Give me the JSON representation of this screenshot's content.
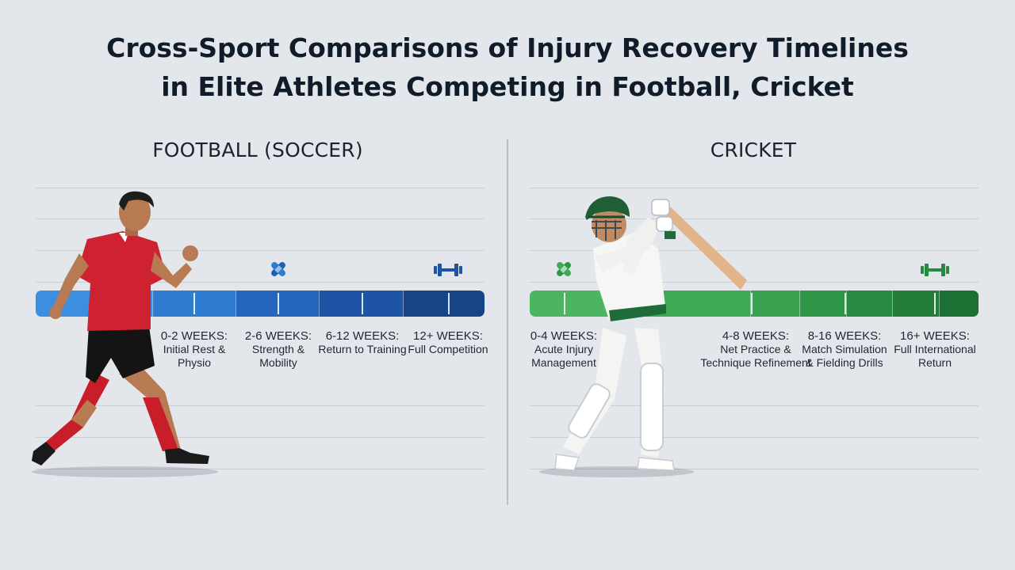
{
  "title_lines": [
    "Cross-Sport Comparisons of Injury Recovery Timelines",
    "in Elite Athletes Competing in Football, Cricket"
  ],
  "football": {
    "heading": "FOOTBALL (SOCCER)",
    "color": "#2f7dd1",
    "stages": [
      {
        "weeks": "0-2 WEEKS:",
        "desc_lines": [
          "Initial Rest &",
          "Physio"
        ]
      },
      {
        "weeks": "2-6 WEEKS:",
        "desc_lines": [
          "Strength &",
          "Mobility"
        ]
      },
      {
        "weeks": "6-12 WEEKS:",
        "desc_lines": [
          "Return to Training"
        ]
      },
      {
        "weeks": "12+ WEEKS:",
        "desc_lines": [
          "Full Competition"
        ]
      }
    ]
  },
  "cricket": {
    "heading": "CRICKET",
    "color": "#2f9a4e",
    "stages": [
      {
        "weeks": "0-4 WEEKS:",
        "desc_lines": [
          "Acute Injury",
          "Management"
        ]
      },
      {
        "weeks": "4-8 WEEKS:",
        "desc_lines": [
          "Net Practice &",
          "Technique Refinement"
        ]
      },
      {
        "weeks": "8-16 WEEKS:",
        "desc_lines": [
          "Match Simulation",
          "& Fielding Drills"
        ]
      },
      {
        "weeks": "16+ WEEKS:",
        "desc_lines": [
          "Full International",
          "Return"
        ]
      }
    ]
  }
}
